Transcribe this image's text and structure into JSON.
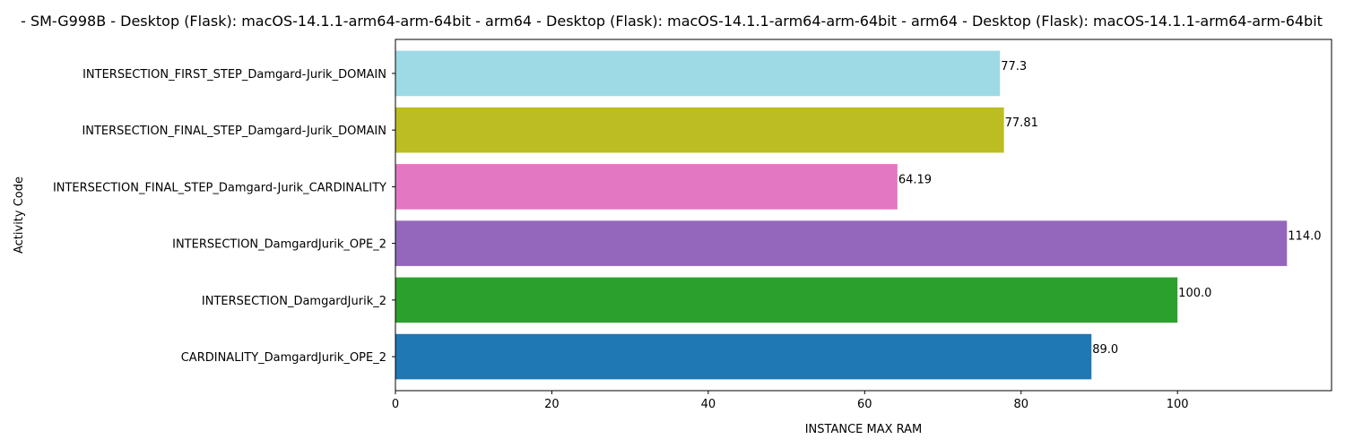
{
  "chart_data": {
    "type": "bar",
    "orientation": "horizontal",
    "title": "- SM-G998B - Desktop (Flask): macOS-14.1.1-arm64-arm-64bit - arm64 - Desktop (Flask): macOS-14.1.1-arm64-arm-64bit - arm64 - Desktop (Flask): macOS-14.1.1-arm64-arm-64bit",
    "xlabel": "INSTANCE MAX RAM",
    "ylabel": "Activity Code",
    "xlim": [
      0,
      119.7
    ],
    "xticks": [
      0,
      20,
      40,
      60,
      80,
      100
    ],
    "grid": false,
    "categories": [
      "CARDINALITY_DamgardJurik_OPE_2",
      "INTERSECTION_DamgardJurik_2",
      "INTERSECTION_DamgardJurik_OPE_2",
      "INTERSECTION_FINAL_STEP_Damgard-Jurik_CARDINALITY",
      "INTERSECTION_FINAL_STEP_Damgard-Jurik_DOMAIN",
      "INTERSECTION_FIRST_STEP_Damgard-Jurik_DOMAIN"
    ],
    "values": [
      89.0,
      100.0,
      114.0,
      64.19,
      77.81,
      77.3
    ],
    "value_labels": [
      "89.0",
      "100.0",
      "114.0",
      "64.19",
      "77.81",
      "77.3"
    ],
    "colors": [
      "#1f77b4",
      "#2ca02c",
      "#9467bd",
      "#e377c2",
      "#bcbd22",
      "#9edae5"
    ]
  }
}
